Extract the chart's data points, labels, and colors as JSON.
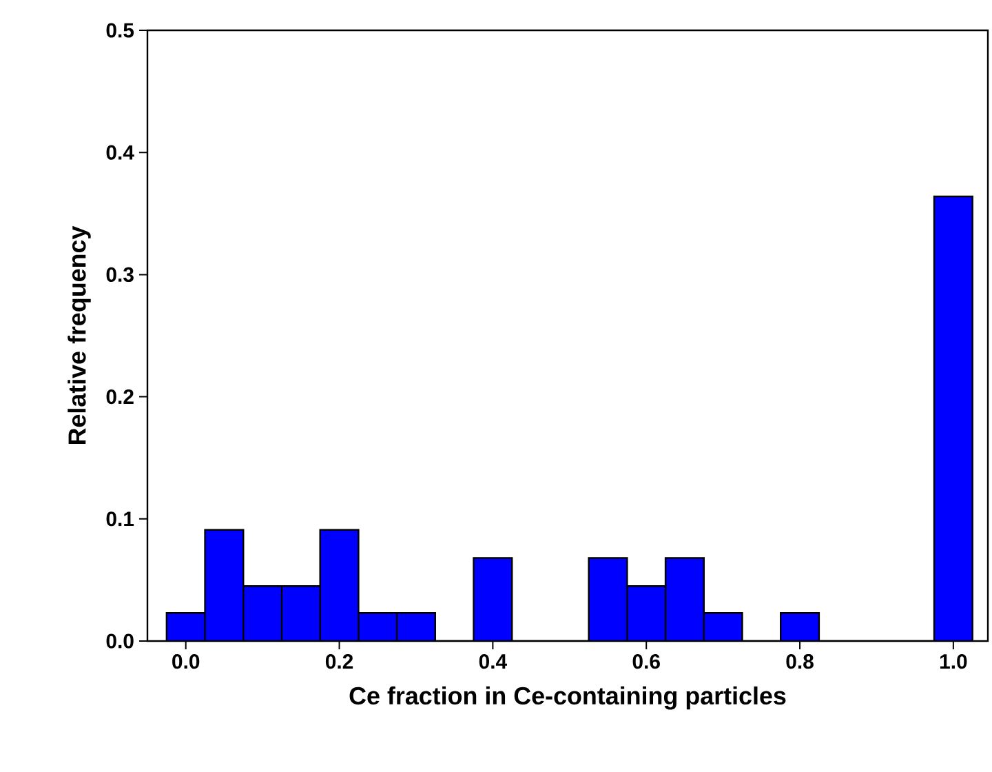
{
  "chart_data": {
    "type": "histogram",
    "xlabel": "Ce fraction in Ce-containing particles",
    "ylabel": "Relative frequency",
    "bins": [
      -0.025,
      0.025,
      0.075,
      0.125,
      0.175,
      0.225,
      0.275,
      0.325,
      0.375,
      0.425,
      0.475,
      0.525,
      0.575,
      0.625,
      0.675,
      0.725,
      0.775,
      0.825,
      0.875,
      0.925,
      0.975,
      1.025
    ],
    "values": [
      0.023,
      0.091,
      0.045,
      0.045,
      0.091,
      0.023,
      0.023,
      0,
      0.068,
      0,
      0,
      0.068,
      0.045,
      0.068,
      0.023,
      0,
      0.023,
      0,
      0,
      0,
      0.364
    ],
    "color": "#0000ff",
    "xlim": [
      -0.05,
      1.045
    ],
    "ylim": [
      0,
      0.5
    ],
    "xticks": [
      {
        "value": 0,
        "label": "0.0"
      },
      {
        "value": 0.2,
        "label": "0.2"
      },
      {
        "value": 0.4,
        "label": "0.4"
      },
      {
        "value": 0.6,
        "label": "0.6"
      },
      {
        "value": 0.8,
        "label": "0.8"
      },
      {
        "value": 1,
        "label": "1.0"
      }
    ],
    "yticks": [
      {
        "value": 0,
        "label": "0.0"
      },
      {
        "value": 0.1,
        "label": "0.1"
      },
      {
        "value": 0.2,
        "label": "0.2"
      },
      {
        "value": 0.3,
        "label": "0.3"
      },
      {
        "value": 0.4,
        "label": "0.4"
      },
      {
        "value": 0.5,
        "label": "0.5"
      }
    ],
    "grid": false
  }
}
